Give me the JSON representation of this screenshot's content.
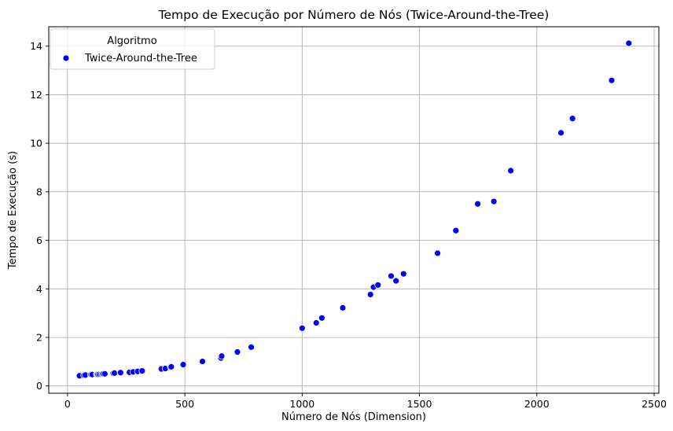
{
  "chart_data": {
    "type": "scatter",
    "title": "Tempo de Execução por Número de Nós (Twice-Around-the-Tree)",
    "xlabel": "Número de Nós (Dimension)",
    "ylabel": "Tempo de Execução (s)",
    "xlim": [
      -80,
      2520
    ],
    "ylim": [
      -0.3,
      14.8
    ],
    "xticks": [
      0,
      500,
      1000,
      1500,
      2000,
      2500
    ],
    "yticks": [
      0,
      2,
      4,
      6,
      8,
      10,
      12,
      14
    ],
    "grid": true,
    "legend": {
      "title": "Algoritmo",
      "placement": "top-left"
    },
    "series": [
      {
        "name": "Twice-Around-the-Tree",
        "color": "#0000ff",
        "points": [
          [
            51,
            0.42
          ],
          [
            70,
            0.44
          ],
          [
            76,
            0.45
          ],
          [
            99,
            0.46
          ],
          [
            100,
            0.47
          ],
          [
            105,
            0.47
          ],
          [
            124,
            0.48
          ],
          [
            127,
            0.49
          ],
          [
            130,
            0.47
          ],
          [
            136,
            0.48
          ],
          [
            144,
            0.48
          ],
          [
            150,
            0.49
          ],
          [
            152,
            0.5
          ],
          [
            159,
            0.5
          ],
          [
            195,
            0.52
          ],
          [
            200,
            0.53
          ],
          [
            225,
            0.54
          ],
          [
            226,
            0.55
          ],
          [
            262,
            0.57
          ],
          [
            264,
            0.56
          ],
          [
            280,
            0.58
          ],
          [
            299,
            0.6
          ],
          [
            318,
            0.62
          ],
          [
            400,
            0.7
          ],
          [
            417,
            0.72
          ],
          [
            439,
            0.77
          ],
          [
            442,
            0.79
          ],
          [
            493,
            0.88
          ],
          [
            575,
            1.01
          ],
          [
            654,
            1.15
          ],
          [
            657,
            1.23
          ],
          [
            724,
            1.4
          ],
          [
            783,
            1.6
          ],
          [
            1000,
            2.38
          ],
          [
            1060,
            2.6
          ],
          [
            1084,
            2.8
          ],
          [
            1173,
            3.22
          ],
          [
            1291,
            3.77
          ],
          [
            1304,
            4.07
          ],
          [
            1323,
            4.16
          ],
          [
            1379,
            4.53
          ],
          [
            1400,
            4.33
          ],
          [
            1432,
            4.62
          ],
          [
            1577,
            5.47
          ],
          [
            1655,
            6.4
          ],
          [
            1748,
            7.5
          ],
          [
            1817,
            7.6
          ],
          [
            1889,
            8.87
          ],
          [
            2103,
            10.43
          ],
          [
            2152,
            11.02
          ],
          [
            2319,
            12.59
          ],
          [
            2392,
            14.12
          ]
        ]
      }
    ]
  }
}
